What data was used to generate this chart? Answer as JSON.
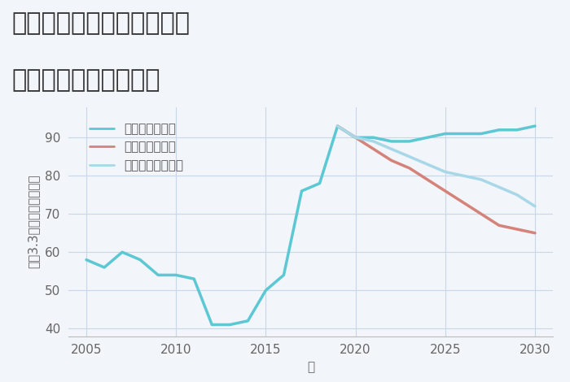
{
  "title_line1": "福岡県遠賀郡芦屋町山鹿の",
  "title_line2": "中古戸建ての価格推移",
  "xlabel": "年",
  "ylabel": "平（3.3㎡）単価（万円）",
  "background_color": "#f2f5f9",
  "plot_background": "#f2f5f9",
  "xlim": [
    2004,
    2031
  ],
  "ylim": [
    38,
    98
  ],
  "yticks": [
    40,
    50,
    60,
    70,
    80,
    90
  ],
  "xticks": [
    2005,
    2010,
    2015,
    2020,
    2025,
    2030
  ],
  "good_scenario": {
    "x": [
      2005,
      2006,
      2007,
      2008,
      2009,
      2010,
      2011,
      2012,
      2013,
      2014,
      2015,
      2016,
      2017,
      2018,
      2019,
      2020,
      2021,
      2022,
      2023,
      2024,
      2025,
      2026,
      2027,
      2028,
      2029,
      2030
    ],
    "y": [
      58,
      56,
      60,
      58,
      54,
      54,
      53,
      41,
      41,
      42,
      50,
      54,
      76,
      78,
      93,
      90,
      90,
      89,
      89,
      90,
      91,
      91,
      91,
      92,
      92,
      93
    ],
    "color": "#5bc8d4",
    "label": "グッドシナリオ",
    "linewidth": 2.5
  },
  "bad_scenario": {
    "x": [
      2019,
      2020,
      2021,
      2022,
      2023,
      2024,
      2025,
      2026,
      2027,
      2028,
      2029,
      2030
    ],
    "y": [
      93,
      90,
      87,
      84,
      82,
      79,
      76,
      73,
      70,
      67,
      66,
      65
    ],
    "color": "#d4827a",
    "label": "バッドシナリオ",
    "linewidth": 2.5
  },
  "normal_scenario": {
    "x": [
      2019,
      2020,
      2021,
      2022,
      2023,
      2024,
      2025,
      2026,
      2027,
      2028,
      2029,
      2030
    ],
    "y": [
      93,
      90,
      89,
      87,
      85,
      83,
      81,
      80,
      79,
      77,
      75,
      72
    ],
    "color": "#a8d8e8",
    "label": "ノーマルシナリオ",
    "linewidth": 2.5
  },
  "grid_color": "#c8d8e8",
  "title_fontsize": 22,
  "label_fontsize": 11,
  "tick_fontsize": 11,
  "legend_fontsize": 11
}
